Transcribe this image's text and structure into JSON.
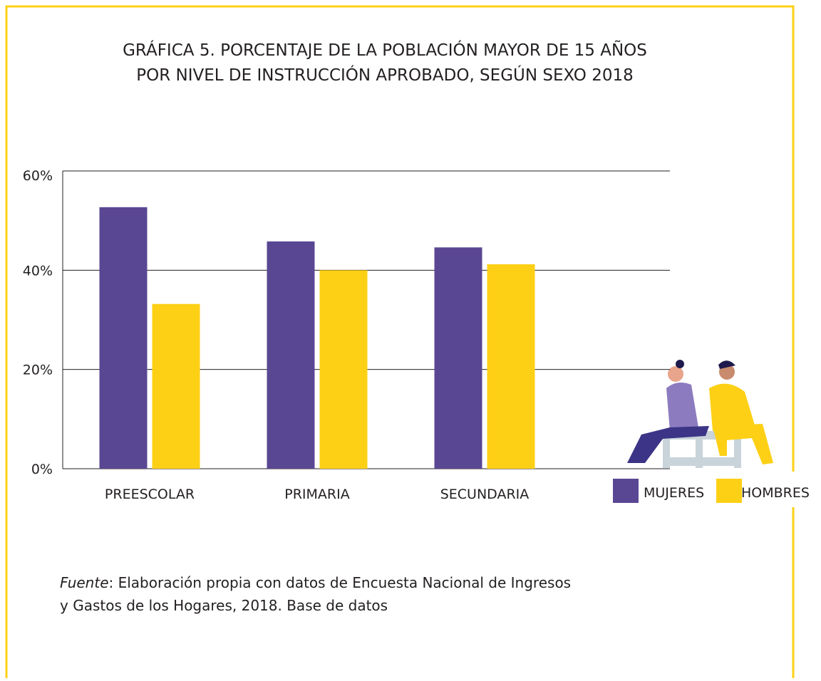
{
  "chart_data": {
    "type": "bar",
    "title": [
      "GRÁFICA 5. PORCENTAJE DE LA POBLACIÓN MAYOR DE 15 AÑOS",
      "POR NIVEL DE INSTRUCCIÓN APROBADO, SEGÚN SEXO 2018"
    ],
    "categories": [
      "PREESCOLAR",
      "PRIMARIA",
      "SECUNDARIA"
    ],
    "series": [
      {
        "name": "MUJERES",
        "color": "#5a4793",
        "values": [
          52.7,
          45.8,
          44.6
        ]
      },
      {
        "name": "HOMBRES",
        "color": "#fdd016",
        "values": [
          33.2,
          40.0,
          41.2
        ]
      }
    ],
    "ylim": [
      0,
      60
    ],
    "yticks": [
      {
        "value": 0,
        "label": "0%"
      },
      {
        "value": 20,
        "label": "20%"
      },
      {
        "value": 40,
        "label": "40%"
      },
      {
        "value": 60,
        "label": "60%"
      }
    ],
    "grid": true,
    "legend": "bottom-right",
    "source_label": "Fuente",
    "source_lines": [
      ": Elaboración propia con datos de Encuesta Nacional de Ingresos",
      "y Gastos de los Hogares, 2018. Base de datos"
    ]
  }
}
